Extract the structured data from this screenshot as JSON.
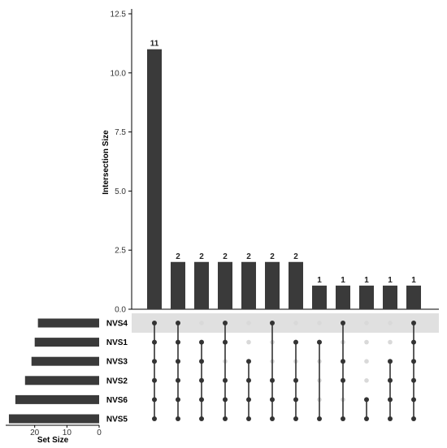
{
  "chart_data": {
    "type": "bar",
    "subtype": "upset",
    "ylabel": "Intersection Size",
    "xlabel_sets": "Set Size",
    "ylim": [
      0,
      12.5
    ],
    "yticks": [
      "0.0",
      "2.5",
      "5.0",
      "7.5",
      "10.0",
      "12.5"
    ],
    "set_size_ticks": [
      "20",
      "10",
      "0"
    ],
    "set_size_lim": [
      0,
      29
    ],
    "sets": [
      {
        "name": "NVS4",
        "size": 19
      },
      {
        "name": "NVS1",
        "size": 20
      },
      {
        "name": "NVS3",
        "size": 21
      },
      {
        "name": "NVS2",
        "size": 23
      },
      {
        "name": "NVS6",
        "size": 26
      },
      {
        "name": "NVS5",
        "size": 28
      }
    ],
    "intersections": [
      {
        "value": 11,
        "label": "11",
        "members": [
          "NVS4",
          "NVS1",
          "NVS3",
          "NVS2",
          "NVS6",
          "NVS5"
        ]
      },
      {
        "value": 2,
        "label": "2",
        "members": [
          "NVS4",
          "NVS1",
          "NVS3",
          "NVS2",
          "NVS6",
          "NVS5"
        ]
      },
      {
        "value": 2,
        "label": "2",
        "members": [
          "NVS1",
          "NVS3",
          "NVS2",
          "NVS6",
          "NVS5"
        ]
      },
      {
        "value": 2,
        "label": "2",
        "members": [
          "NVS4",
          "NVS1",
          "NVS2",
          "NVS6",
          "NVS5"
        ]
      },
      {
        "value": 2,
        "label": "2",
        "members": [
          "NVS3",
          "NVS2",
          "NVS6",
          "NVS5"
        ]
      },
      {
        "value": 2,
        "label": "2",
        "members": [
          "NVS4",
          "NVS2",
          "NVS6",
          "NVS5"
        ]
      },
      {
        "value": 2,
        "label": "2",
        "members": [
          "NVS1",
          "NVS2",
          "NVS6",
          "NVS5"
        ]
      },
      {
        "value": 1,
        "label": "1",
        "members": [
          "NVS1",
          "NVS5"
        ]
      },
      {
        "value": 1,
        "label": "1",
        "members": [
          "NVS4",
          "NVS3",
          "NVS2",
          "NVS5"
        ]
      },
      {
        "value": 1,
        "label": "1",
        "members": [
          "NVS6",
          "NVS5"
        ]
      },
      {
        "value": 1,
        "label": "1",
        "members": [
          "NVS3",
          "NVS2",
          "NVS6",
          "NVS5"
        ]
      },
      {
        "value": 1,
        "label": "1",
        "members": [
          "NVS4",
          "NVS1",
          "NVS3",
          "NVS2",
          "NVS6",
          "NVS5"
        ]
      }
    ],
    "colors": {
      "bar": "#3a3a3a",
      "dot_active": "#333333",
      "dot_inactive": "#d9d9d9",
      "row_shade": "#e0e0e0"
    }
  }
}
